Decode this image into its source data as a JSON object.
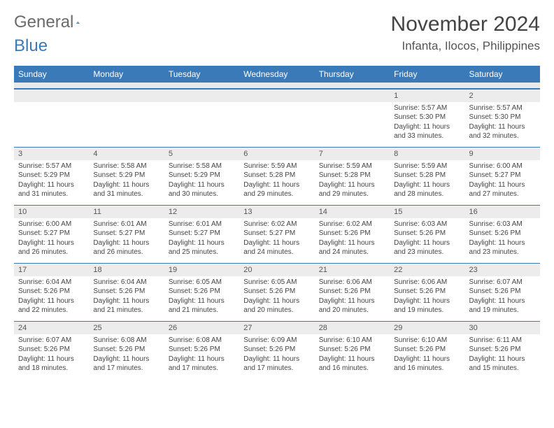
{
  "logo": {
    "word1": "General",
    "word2": "Blue"
  },
  "title": "November 2024",
  "location": "Infanta, Ilocos, Philippines",
  "colors": {
    "header_bg": "#3a7ab8",
    "header_text": "#ffffff",
    "date_bg": "#ececec",
    "page_bg": "#ffffff",
    "text": "#444444",
    "logo_gray": "#6b6b6b",
    "logo_blue": "#3a7ab8"
  },
  "day_headers": [
    "Sunday",
    "Monday",
    "Tuesday",
    "Wednesday",
    "Thursday",
    "Friday",
    "Saturday"
  ],
  "weeks": [
    {
      "dates": [
        "",
        "",
        "",
        "",
        "",
        "1",
        "2"
      ],
      "cells": [
        {},
        {},
        {},
        {},
        {},
        {
          "sunrise": "Sunrise: 5:57 AM",
          "sunset": "Sunset: 5:30 PM",
          "daylight1": "Daylight: 11 hours",
          "daylight2": "and 33 minutes."
        },
        {
          "sunrise": "Sunrise: 5:57 AM",
          "sunset": "Sunset: 5:30 PM",
          "daylight1": "Daylight: 11 hours",
          "daylight2": "and 32 minutes."
        }
      ]
    },
    {
      "dates": [
        "3",
        "4",
        "5",
        "6",
        "7",
        "8",
        "9"
      ],
      "cells": [
        {
          "sunrise": "Sunrise: 5:57 AM",
          "sunset": "Sunset: 5:29 PM",
          "daylight1": "Daylight: 11 hours",
          "daylight2": "and 31 minutes."
        },
        {
          "sunrise": "Sunrise: 5:58 AM",
          "sunset": "Sunset: 5:29 PM",
          "daylight1": "Daylight: 11 hours",
          "daylight2": "and 31 minutes."
        },
        {
          "sunrise": "Sunrise: 5:58 AM",
          "sunset": "Sunset: 5:29 PM",
          "daylight1": "Daylight: 11 hours",
          "daylight2": "and 30 minutes."
        },
        {
          "sunrise": "Sunrise: 5:59 AM",
          "sunset": "Sunset: 5:28 PM",
          "daylight1": "Daylight: 11 hours",
          "daylight2": "and 29 minutes."
        },
        {
          "sunrise": "Sunrise: 5:59 AM",
          "sunset": "Sunset: 5:28 PM",
          "daylight1": "Daylight: 11 hours",
          "daylight2": "and 29 minutes."
        },
        {
          "sunrise": "Sunrise: 5:59 AM",
          "sunset": "Sunset: 5:28 PM",
          "daylight1": "Daylight: 11 hours",
          "daylight2": "and 28 minutes."
        },
        {
          "sunrise": "Sunrise: 6:00 AM",
          "sunset": "Sunset: 5:27 PM",
          "daylight1": "Daylight: 11 hours",
          "daylight2": "and 27 minutes."
        }
      ]
    },
    {
      "dates": [
        "10",
        "11",
        "12",
        "13",
        "14",
        "15",
        "16"
      ],
      "cells": [
        {
          "sunrise": "Sunrise: 6:00 AM",
          "sunset": "Sunset: 5:27 PM",
          "daylight1": "Daylight: 11 hours",
          "daylight2": "and 26 minutes."
        },
        {
          "sunrise": "Sunrise: 6:01 AM",
          "sunset": "Sunset: 5:27 PM",
          "daylight1": "Daylight: 11 hours",
          "daylight2": "and 26 minutes."
        },
        {
          "sunrise": "Sunrise: 6:01 AM",
          "sunset": "Sunset: 5:27 PM",
          "daylight1": "Daylight: 11 hours",
          "daylight2": "and 25 minutes."
        },
        {
          "sunrise": "Sunrise: 6:02 AM",
          "sunset": "Sunset: 5:27 PM",
          "daylight1": "Daylight: 11 hours",
          "daylight2": "and 24 minutes."
        },
        {
          "sunrise": "Sunrise: 6:02 AM",
          "sunset": "Sunset: 5:26 PM",
          "daylight1": "Daylight: 11 hours",
          "daylight2": "and 24 minutes."
        },
        {
          "sunrise": "Sunrise: 6:03 AM",
          "sunset": "Sunset: 5:26 PM",
          "daylight1": "Daylight: 11 hours",
          "daylight2": "and 23 minutes."
        },
        {
          "sunrise": "Sunrise: 6:03 AM",
          "sunset": "Sunset: 5:26 PM",
          "daylight1": "Daylight: 11 hours",
          "daylight2": "and 23 minutes."
        }
      ]
    },
    {
      "dates": [
        "17",
        "18",
        "19",
        "20",
        "21",
        "22",
        "23"
      ],
      "cells": [
        {
          "sunrise": "Sunrise: 6:04 AM",
          "sunset": "Sunset: 5:26 PM",
          "daylight1": "Daylight: 11 hours",
          "daylight2": "and 22 minutes."
        },
        {
          "sunrise": "Sunrise: 6:04 AM",
          "sunset": "Sunset: 5:26 PM",
          "daylight1": "Daylight: 11 hours",
          "daylight2": "and 21 minutes."
        },
        {
          "sunrise": "Sunrise: 6:05 AM",
          "sunset": "Sunset: 5:26 PM",
          "daylight1": "Daylight: 11 hours",
          "daylight2": "and 21 minutes."
        },
        {
          "sunrise": "Sunrise: 6:05 AM",
          "sunset": "Sunset: 5:26 PM",
          "daylight1": "Daylight: 11 hours",
          "daylight2": "and 20 minutes."
        },
        {
          "sunrise": "Sunrise: 6:06 AM",
          "sunset": "Sunset: 5:26 PM",
          "daylight1": "Daylight: 11 hours",
          "daylight2": "and 20 minutes."
        },
        {
          "sunrise": "Sunrise: 6:06 AM",
          "sunset": "Sunset: 5:26 PM",
          "daylight1": "Daylight: 11 hours",
          "daylight2": "and 19 minutes."
        },
        {
          "sunrise": "Sunrise: 6:07 AM",
          "sunset": "Sunset: 5:26 PM",
          "daylight1": "Daylight: 11 hours",
          "daylight2": "and 19 minutes."
        }
      ]
    },
    {
      "dates": [
        "24",
        "25",
        "26",
        "27",
        "28",
        "29",
        "30"
      ],
      "cells": [
        {
          "sunrise": "Sunrise: 6:07 AM",
          "sunset": "Sunset: 5:26 PM",
          "daylight1": "Daylight: 11 hours",
          "daylight2": "and 18 minutes."
        },
        {
          "sunrise": "Sunrise: 6:08 AM",
          "sunset": "Sunset: 5:26 PM",
          "daylight1": "Daylight: 11 hours",
          "daylight2": "and 17 minutes."
        },
        {
          "sunrise": "Sunrise: 6:08 AM",
          "sunset": "Sunset: 5:26 PM",
          "daylight1": "Daylight: 11 hours",
          "daylight2": "and 17 minutes."
        },
        {
          "sunrise": "Sunrise: 6:09 AM",
          "sunset": "Sunset: 5:26 PM",
          "daylight1": "Daylight: 11 hours",
          "daylight2": "and 17 minutes."
        },
        {
          "sunrise": "Sunrise: 6:10 AM",
          "sunset": "Sunset: 5:26 PM",
          "daylight1": "Daylight: 11 hours",
          "daylight2": "and 16 minutes."
        },
        {
          "sunrise": "Sunrise: 6:10 AM",
          "sunset": "Sunset: 5:26 PM",
          "daylight1": "Daylight: 11 hours",
          "daylight2": "and 16 minutes."
        },
        {
          "sunrise": "Sunrise: 6:11 AM",
          "sunset": "Sunset: 5:26 PM",
          "daylight1": "Daylight: 11 hours",
          "daylight2": "and 15 minutes."
        }
      ]
    }
  ]
}
